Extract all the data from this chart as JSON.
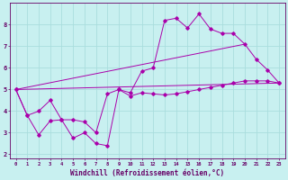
{
  "xlabel": "Windchill (Refroidissement éolien,°C)",
  "bg_color": "#c8f0f0",
  "line_color": "#aa00aa",
  "grid_color": "#aadddd",
  "xlim": [
    -0.5,
    23.5
  ],
  "ylim": [
    1.8,
    9.0
  ],
  "xticks": [
    0,
    1,
    2,
    3,
    4,
    5,
    6,
    7,
    8,
    9,
    10,
    11,
    12,
    13,
    14,
    15,
    16,
    17,
    18,
    19,
    20,
    21,
    22,
    23
  ],
  "yticks": [
    2,
    3,
    4,
    5,
    6,
    7,
    8
  ],
  "line1_x": [
    0,
    1,
    2,
    3,
    4,
    5,
    6,
    7,
    8,
    9,
    10,
    11,
    12,
    13,
    14,
    15,
    16,
    17,
    18,
    19,
    20,
    21,
    22,
    23
  ],
  "line1_y": [
    5.0,
    3.8,
    2.9,
    3.55,
    3.6,
    2.75,
    3.0,
    2.5,
    2.4,
    5.0,
    4.85,
    5.85,
    6.0,
    8.2,
    8.3,
    7.85,
    8.5,
    7.8,
    7.6,
    7.6,
    7.1,
    6.4,
    5.9,
    5.3
  ],
  "line2_x": [
    0,
    1,
    2,
    3,
    4,
    5,
    6,
    7,
    8,
    9,
    10,
    11,
    12,
    13,
    14,
    15,
    16,
    17,
    18,
    19,
    20,
    21,
    22,
    23
  ],
  "line2_y": [
    5.0,
    3.8,
    4.0,
    4.5,
    3.6,
    3.6,
    3.5,
    3.0,
    4.8,
    5.0,
    4.7,
    4.85,
    4.8,
    4.75,
    4.8,
    4.9,
    5.0,
    5.1,
    5.2,
    5.3,
    5.4,
    5.4,
    5.4,
    5.3
  ],
  "line3_x": [
    0,
    23
  ],
  "line3_y": [
    5.0,
    5.3
  ],
  "line4_x": [
    0,
    20
  ],
  "line4_y": [
    5.0,
    7.1
  ]
}
